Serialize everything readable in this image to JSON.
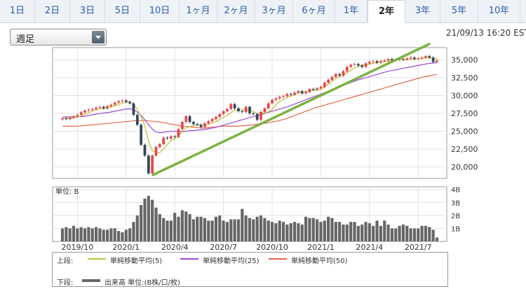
{
  "tabs": [
    {
      "label": "1日",
      "active": false
    },
    {
      "label": "2日",
      "active": false
    },
    {
      "label": "3日",
      "active": false
    },
    {
      "label": "5日",
      "active": false
    },
    {
      "label": "10日",
      "active": false
    },
    {
      "label": "1ヶ月",
      "active": false
    },
    {
      "label": "2ヶ月",
      "active": false
    },
    {
      "label": "3ヶ月",
      "active": false
    },
    {
      "label": "6ヶ月",
      "active": false
    },
    {
      "label": "1年",
      "active": false
    },
    {
      "label": "2年",
      "active": true
    },
    {
      "label": "3年",
      "active": false
    },
    {
      "label": "5年",
      "active": false
    },
    {
      "label": "10年",
      "active": false
    }
  ],
  "selector": {
    "value": "週足"
  },
  "timestamp": "21/09/13 16:20 EST",
  "volume_unit_label": "単位: B",
  "legend": {
    "upper_label": "上段:",
    "lower_label": "下段:",
    "ma5": "単純移動平均(5)",
    "ma25": "単純移動平均(25)",
    "ma50": "単純移動平均(50)",
    "volume": "出来高 単位:(B株/口/枚)"
  },
  "colors": {
    "up": "#e8474a",
    "down": "#34465a",
    "ma5": "#b9c534",
    "ma25": "#9b4bd6",
    "ma50": "#e2664b",
    "trend": "#7cb342",
    "volume": "#666666"
  },
  "chart_data": {
    "type": "candlestick",
    "x_ticks": [
      "2019/10",
      "2020/1",
      "2020/4",
      "2020/7",
      "2020/10",
      "2021/1",
      "2021/4",
      "2021/7"
    ],
    "price_ticks": [
      "35,000",
      "32,500",
      "30,000",
      "27,500",
      "25,000",
      "22,500",
      "20,000"
    ],
    "volume_ticks": [
      "4B",
      "3B",
      "2B",
      "1B"
    ],
    "ylim": [
      18400,
      36700
    ],
    "volume_ylim": [
      0,
      4.2
    ],
    "series": [
      {
        "name": "単純移動平均(5)"
      },
      {
        "name": "単純移動平均(25)"
      },
      {
        "name": "単純移動平均(50)"
      },
      {
        "name": "出来高"
      }
    ],
    "close": [
      26800,
      26700,
      26900,
      27100,
      27300,
      27650,
      27900,
      28000,
      28100,
      28300,
      28400,
      28200,
      28500,
      28700,
      29000,
      29200,
      29300,
      29100,
      28900,
      27300,
      25900,
      23100,
      21600,
      19100,
      21600,
      22800,
      23200,
      24100,
      24000,
      24300,
      24200,
      25300,
      26300,
      27100,
      26300,
      26000,
      25900,
      25600,
      26100,
      26400,
      26700,
      27000,
      27400,
      27800,
      28100,
      28800,
      28200,
      27800,
      27700,
      28400,
      27500,
      27400,
      26600,
      27700,
      28200,
      28900,
      29400,
      29600,
      29800,
      29900,
      30200,
      30100,
      30400,
      30600,
      30300,
      30500,
      30900,
      30800,
      31000,
      31200,
      31800,
      32200,
      32600,
      33000,
      32800,
      33400,
      34000,
      34300,
      34400,
      34200,
      34000,
      34500,
      34700,
      34800,
      34600,
      34800,
      34900,
      35100,
      34900,
      35000,
      35100,
      35000,
      35200,
      35300,
      35100,
      35200,
      35300,
      35500,
      35300,
      34700,
      34900
    ],
    "ma5": [
      26800,
      26750,
      26800,
      26900,
      26960,
      27130,
      27370,
      27590,
      27790,
      28000,
      28140,
      28200,
      28300,
      28420,
      28560,
      28720,
      28940,
      29060,
      29100,
      28760,
      28100,
      27000,
      25760,
      23600,
      22280,
      22000,
      22020,
      22500,
      23140,
      23680,
      23960,
      24380,
      24940,
      25440,
      25620,
      25800,
      25900,
      25800,
      25900,
      26000,
      26140,
      26360,
      26640,
      26960,
      27240,
      27640,
      27900,
      28000,
      28000,
      28000,
      28000,
      27780,
      27460,
      27600,
      27540,
      27700,
      28100,
      28700,
      29160,
      29460,
      29700,
      29900,
      30140,
      30380,
      30480,
      30520,
      30660,
      30740,
      30780,
      30900,
      31200,
      31560,
      31980,
      32360,
      32620,
      32840,
      33160,
      33520,
      33860,
      34080,
      34260,
      34300,
      34400,
      34500,
      34560,
      34680,
      34780,
      34780,
      34840,
      34920,
      35000,
      35020,
      35040,
      35100,
      35120,
      35160,
      35220,
      35280,
      35300,
      35200,
      35160
    ],
    "ma25": [
      27000,
      27000,
      27000,
      27000,
      27000,
      27050,
      27100,
      27200,
      27300,
      27400,
      27480,
      27550,
      27600,
      27700,
      27800,
      27900,
      28000,
      28100,
      28150,
      28000,
      27700,
      27200,
      26600,
      25900,
      25300,
      24900,
      24800,
      24850,
      24950,
      25000,
      25000,
      24950,
      24950,
      25000,
      25050,
      25100,
      25150,
      25200,
      25250,
      25350,
      25450,
      25550,
      25700,
      25850,
      26000,
      26150,
      26300,
      26450,
      26600,
      26750,
      26900,
      27050,
      27200,
      27350,
      27500,
      27650,
      27800,
      27950,
      28100,
      28250,
      28400,
      28600,
      28800,
      29000,
      29200,
      29400,
      29600,
      29800,
      30000,
      30200,
      30400,
      30600,
      30800,
      31000,
      31200,
      31400,
      31600,
      31800,
      32000,
      32200,
      32350,
      32500,
      32650,
      32800,
      32950,
      33100,
      33250,
      33400,
      33500,
      33600,
      33700,
      33800,
      33900,
      34000,
      34100,
      34200,
      34300,
      34400,
      34500,
      34550,
      34600
    ],
    "ma50": [
      25700,
      25700,
      25700,
      25700,
      25720,
      25760,
      25800,
      25850,
      25900,
      25950,
      26000,
      26050,
      26100,
      26150,
      26200,
      26250,
      26300,
      26350,
      26400,
      26450,
      26500,
      26500,
      26500,
      26450,
      26400,
      26350,
      26300,
      26200,
      26100,
      26000,
      25900,
      25800,
      25700,
      25650,
      25600,
      25550,
      25500,
      25450,
      25450,
      25500,
      25550,
      25600,
      25650,
      25700,
      25700,
      25700,
      25700,
      25700,
      25750,
      25800,
      25850,
      25900,
      26000,
      26050,
      26100,
      26200,
      26300,
      26400,
      26500,
      26650,
      26800,
      27000,
      27200,
      27400,
      27600,
      27800,
      28000,
      28200,
      28350,
      28500,
      28650,
      28800,
      28950,
      29100,
      29250,
      29400,
      29550,
      29700,
      29850,
      30000,
      30150,
      30300,
      30450,
      30600,
      30750,
      30900,
      31050,
      31200,
      31350,
      31500,
      31650,
      31800,
      31950,
      32100,
      32250,
      32400,
      32550,
      32650,
      32750,
      32850,
      32950
    ],
    "volume": [
      1.0,
      1.1,
      1.0,
      1.2,
      1.0,
      1.1,
      1.0,
      1.1,
      1.0,
      1.1,
      1.0,
      0.9,
      0.9,
      1.0,
      1.0,
      0.8,
      0.7,
      0.9,
      1.0,
      1.5,
      2.0,
      2.8,
      3.3,
      3.5,
      3.2,
      2.6,
      2.1,
      1.8,
      1.6,
      1.6,
      2.2,
      1.9,
      2.4,
      2.3,
      2.1,
      1.7,
      1.9,
      1.9,
      1.8,
      1.6,
      1.6,
      1.9,
      2.0,
      1.6,
      1.5,
      1.7,
      1.7,
      1.7,
      2.5,
      2.0,
      1.8,
      1.7,
      1.9,
      2.0,
      1.8,
      1.6,
      1.5,
      1.4,
      1.6,
      1.5,
      1.3,
      1.4,
      1.5,
      1.4,
      1.3,
      1.9,
      1.8,
      1.8,
      1.7,
      1.5,
      1.6,
      1.9,
      1.8,
      1.5,
      1.5,
      1.3,
      1.3,
      1.5,
      1.5,
      1.2,
      1.3,
      1.5,
      1.4,
      1.2,
      1.6,
      1.2,
      1.6,
      1.3,
      1.0,
      1.0,
      1.2,
      1.3,
      1.2,
      1.0,
      1.0,
      1.0,
      1.2,
      1.2,
      1.1,
      0.9,
      0.3
    ]
  }
}
